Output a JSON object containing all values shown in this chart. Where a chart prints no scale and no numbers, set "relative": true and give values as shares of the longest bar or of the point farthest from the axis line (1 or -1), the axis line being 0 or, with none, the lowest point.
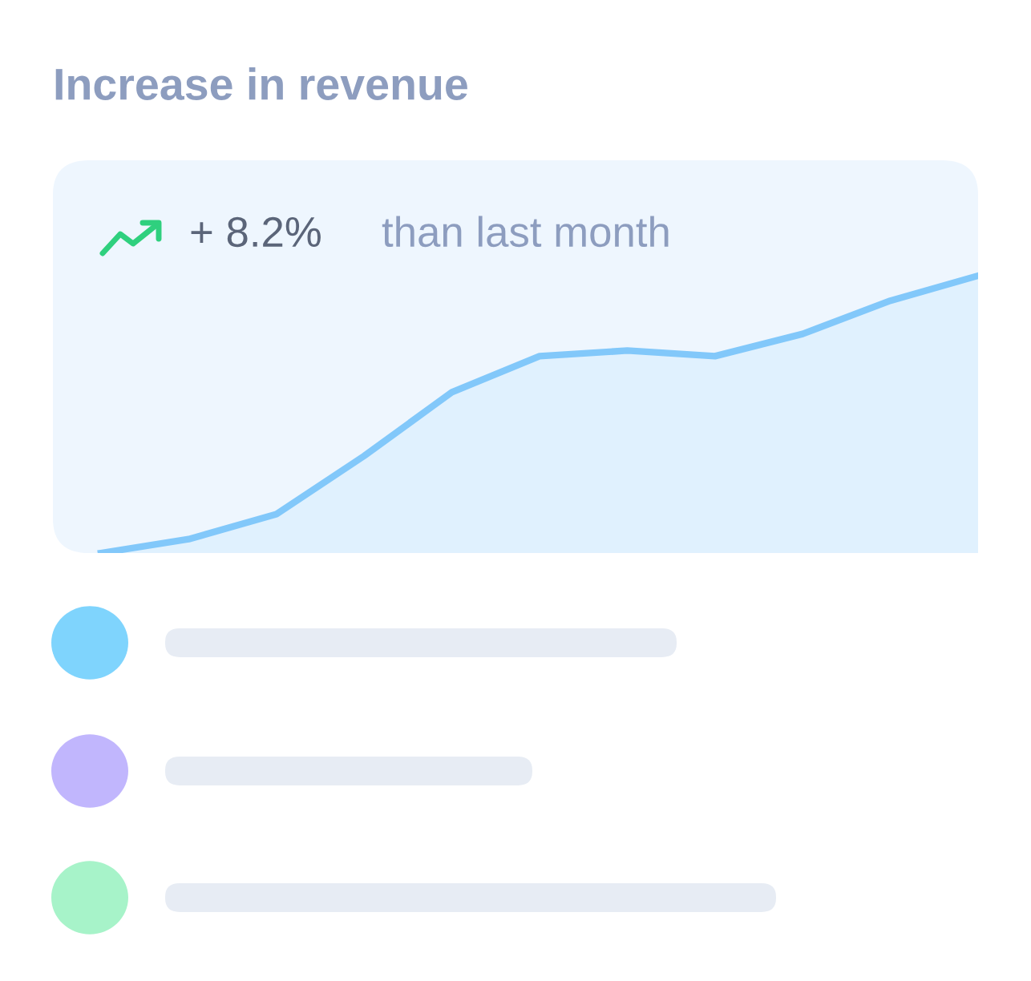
{
  "chart_data": {
    "type": "area",
    "title": "Increase in revenue",
    "annotations": [
      "+ 8.2%",
      "than last month"
    ],
    "categories": [
      null,
      null,
      null,
      null,
      null,
      null,
      null,
      null,
      null,
      null,
      null
    ],
    "relative": true,
    "series": [
      {
        "color": "#82c8fa",
        "values": [
          0,
          0.05,
          0.14,
          0.35,
          0.58,
          0.71,
          0.73,
          0.71,
          0.79,
          0.91,
          1
        ]
      }
    ]
  }
}
